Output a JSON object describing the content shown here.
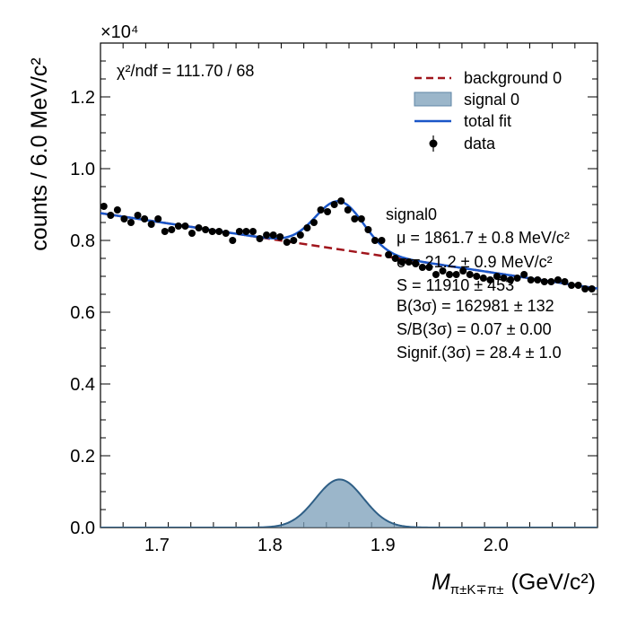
{
  "chart_data": {
    "type": "scatter",
    "xlabel_main": "M",
    "xlabel_sub": "π±K∓π±",
    "xlabel_unit": "(GeV/c²)",
    "ylabel": "counts / 6.0 MeV/c²",
    "y_multiplier": "×10⁴",
    "chi2_text": "χ²/ndf = 111.70 / 68",
    "xlim": [
      1.65,
      2.09
    ],
    "ylim": [
      0,
      13500
    ],
    "x_ticks": [
      1.7,
      1.8,
      1.9,
      2.0
    ],
    "x_tick_labels": [
      "1.7",
      "1.8",
      "1.9",
      "2.0"
    ],
    "y_ticks": [
      0,
      2000,
      4000,
      6000,
      8000,
      10000,
      12000
    ],
    "y_tick_labels": [
      "0.0",
      "0.2",
      "0.4",
      "0.6",
      "0.8",
      "1.0",
      "1.2"
    ],
    "legend_position": "top-right",
    "legend": [
      {
        "label": "background 0",
        "style": "dashed-line",
        "color": "#a0151c"
      },
      {
        "label": "signal 0",
        "style": "filled",
        "color": "#7a9db8"
      },
      {
        "label": "total fit",
        "style": "line",
        "color": "#1a56c8"
      },
      {
        "label": "data",
        "style": "point",
        "color": "#000000"
      }
    ],
    "fit_info": {
      "title": "signal0",
      "lines": [
        "μ = 1861.7 ± 0.8 MeV/c²",
        "σ = 21.2 ± 0.9 MeV/c²",
        "S = 11910 ± 453",
        "B(3σ) = 162981 ± 132",
        "S/B(3σ) = 0.07 ± 0.00",
        "Signif.(3σ) = 28.4 ± 1.0"
      ]
    },
    "background_model": {
      "x": [
        1.65,
        2.09
      ],
      "y": [
        8760,
        6660
      ]
    },
    "signal_model": {
      "mean": 1.8617,
      "sigma": 0.0212,
      "peak": 1340
    },
    "series": [
      {
        "name": "data",
        "x": [
          1.653,
          1.659,
          1.665,
          1.671,
          1.677,
          1.683,
          1.689,
          1.695,
          1.701,
          1.707,
          1.713,
          1.719,
          1.725,
          1.731,
          1.737,
          1.743,
          1.749,
          1.755,
          1.761,
          1.767,
          1.773,
          1.779,
          1.785,
          1.791,
          1.797,
          1.803,
          1.809,
          1.815,
          1.821,
          1.827,
          1.833,
          1.839,
          1.845,
          1.851,
          1.857,
          1.863,
          1.869,
          1.875,
          1.881,
          1.887,
          1.893,
          1.899,
          1.905,
          1.911,
          1.917,
          1.923,
          1.929,
          1.935,
          1.941,
          1.947,
          1.953,
          1.959,
          1.965,
          1.971,
          1.977,
          1.983,
          1.989,
          1.995,
          2.001,
          2.007,
          2.013,
          2.019,
          2.025,
          2.031,
          2.037,
          2.043,
          2.049,
          2.055,
          2.061,
          2.067,
          2.073,
          2.079,
          2.085
        ],
        "y": [
          8950,
          8700,
          8850,
          8600,
          8500,
          8700,
          8600,
          8450,
          8600,
          8250,
          8300,
          8400,
          8400,
          8200,
          8350,
          8300,
          8250,
          8250,
          8200,
          8000,
          8250,
          8250,
          8250,
          8050,
          8150,
          8150,
          8100,
          7950,
          8000,
          8150,
          8350,
          8500,
          8850,
          8800,
          9000,
          9100,
          8850,
          8600,
          8600,
          8300,
          8000,
          8000,
          7600,
          7500,
          7400,
          7400,
          7350,
          7250,
          7250,
          7050,
          7150,
          7050,
          7050,
          7150,
          7050,
          7000,
          6950,
          6900,
          7000,
          6950,
          6900,
          6950,
          7050,
          6900,
          6900,
          6850,
          6850,
          6900,
          6850,
          6750,
          6750,
          6650,
          6650
        ]
      }
    ]
  }
}
